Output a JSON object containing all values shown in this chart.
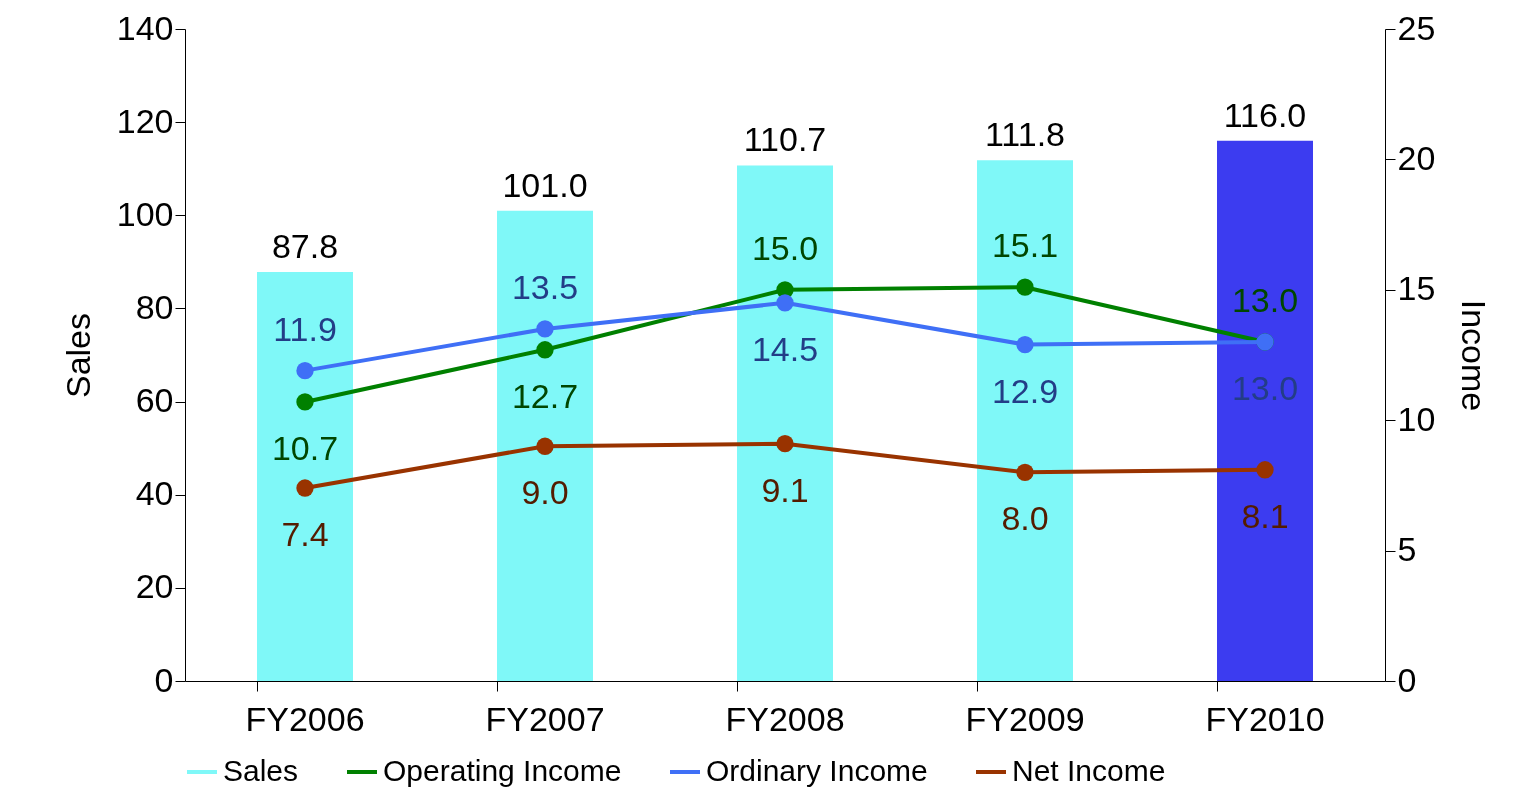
{
  "chart_data": {
    "type": "bar",
    "categories": [
      "FY2006",
      "FY2007",
      "FY2008",
      "FY2009",
      "FY2010"
    ],
    "ylabel": "Sales",
    "y2label": "Income",
    "series": [
      {
        "name": "Sales",
        "colors": [
          "#7ff8f8",
          "#7ff8f8",
          "#7ff8f8",
          "#7ff8f8",
          "#3c3cf0"
        ],
        "color": "#7ff8f8",
        "values": [
          87.8,
          101.0,
          110.7,
          111.8,
          116.0
        ],
        "value_labels": [
          "87.8",
          "101.0",
          "110.7",
          "111.8",
          "116.0"
        ]
      },
      {
        "name": "Operating Income",
        "type": "line",
        "axis": "y2",
        "color": "#008000",
        "values": [
          10.7,
          12.7,
          15.0,
          15.1,
          13.0
        ],
        "value_labels": [
          "10.7",
          "12.7",
          "15.0",
          "15.1",
          "13.0"
        ]
      },
      {
        "name": "Ordinary Income",
        "type": "line",
        "axis": "y2",
        "color": "#3f6ff6",
        "values": [
          11.9,
          13.5,
          14.5,
          12.9,
          13.0
        ],
        "value_labels": [
          "11.9",
          "13.5",
          "14.5",
          "12.9",
          "13.0"
        ]
      },
      {
        "name": "Net Income",
        "type": "line",
        "axis": "y2",
        "color": "#993300",
        "values": [
          7.4,
          9.0,
          9.1,
          8.0,
          8.1
        ],
        "value_labels": [
          "7.4",
          "9.0",
          "9.1",
          "8.0",
          "8.1"
        ]
      }
    ],
    "ylim": [
      0,
      140
    ],
    "yticks": [
      0,
      20,
      40,
      60,
      80,
      100,
      120,
      140
    ],
    "y2lim": [
      0,
      25
    ],
    "y2ticks": [
      0,
      5,
      10,
      15,
      20,
      25
    ],
    "grid": false,
    "legend": "bottom",
    "marker": "circle"
  }
}
